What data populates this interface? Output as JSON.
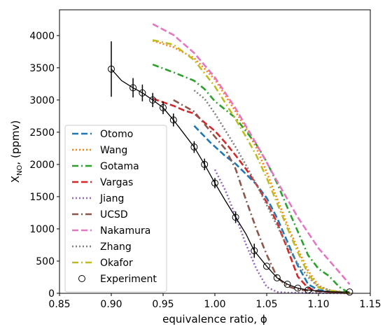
{
  "chart_data": {
    "type": "line",
    "xlabel": "equivalence ratio, ϕ",
    "ylabel_main": "X",
    "ylabel_sub": "NO",
    "ylabel_tail": ", (ppmv)",
    "xlim": [
      0.85,
      1.15
    ],
    "ylim": [
      0,
      4400
    ],
    "xticks": [
      "0.85",
      "0.90",
      "0.95",
      "1.00",
      "1.05",
      "1.10",
      "1.15"
    ],
    "yticks": [
      "0",
      "500",
      "1000",
      "1500",
      "2000",
      "2500",
      "3000",
      "3500",
      "4000"
    ],
    "grid": false,
    "legend_position": "lower-left",
    "series": [
      {
        "name": "Otomo",
        "color": "#1f77b4",
        "dash": "dashed",
        "points": [
          [
            0.98,
            2600
          ],
          [
            0.995,
            2350
          ],
          [
            1.01,
            2130
          ],
          [
            1.02,
            2010
          ],
          [
            1.03,
            1850
          ],
          [
            1.04,
            1690
          ],
          [
            1.05,
            1480
          ],
          [
            1.06,
            1170
          ],
          [
            1.07,
            800
          ],
          [
            1.08,
            430
          ],
          [
            1.09,
            140
          ],
          [
            1.1,
            50
          ],
          [
            1.12,
            20
          ],
          [
            1.13,
            0
          ]
        ]
      },
      {
        "name": "Wang",
        "color": "#ff7f0e",
        "dash": "dotted",
        "points": [
          [
            0.94,
            3920
          ],
          [
            0.96,
            3820
          ],
          [
            0.98,
            3650
          ],
          [
            1.0,
            3320
          ],
          [
            1.02,
            2820
          ],
          [
            1.03,
            2560
          ],
          [
            1.04,
            2260
          ],
          [
            1.05,
            1880
          ],
          [
            1.06,
            1470
          ],
          [
            1.07,
            1060
          ],
          [
            1.08,
            690
          ],
          [
            1.09,
            350
          ],
          [
            1.1,
            120
          ],
          [
            1.11,
            50
          ],
          [
            1.12,
            20
          ],
          [
            1.13,
            0
          ]
        ]
      },
      {
        "name": "Gotama",
        "color": "#2ca02c",
        "dash": "dashdot",
        "points": [
          [
            0.94,
            3550
          ],
          [
            0.96,
            3430
          ],
          [
            0.98,
            3300
          ],
          [
            0.99,
            3170
          ],
          [
            1.0,
            2980
          ],
          [
            1.02,
            2720
          ],
          [
            1.04,
            2310
          ],
          [
            1.05,
            2040
          ],
          [
            1.06,
            1710
          ],
          [
            1.07,
            1330
          ],
          [
            1.08,
            960
          ],
          [
            1.09,
            590
          ],
          [
            1.1,
            380
          ],
          [
            1.11,
            270
          ],
          [
            1.12,
            100
          ],
          [
            1.13,
            0
          ]
        ]
      },
      {
        "name": "Vargas",
        "color": "#d62728",
        "dash": "dashed",
        "points": [
          [
            0.94,
            3020
          ],
          [
            0.96,
            2910
          ],
          [
            0.97,
            2840
          ],
          [
            0.98,
            2790
          ],
          [
            0.99,
            2650
          ],
          [
            1.0,
            2520
          ],
          [
            1.01,
            2340
          ],
          [
            1.02,
            2140
          ],
          [
            1.03,
            1930
          ],
          [
            1.04,
            1690
          ],
          [
            1.05,
            1410
          ],
          [
            1.06,
            1100
          ],
          [
            1.07,
            690
          ],
          [
            1.08,
            260
          ],
          [
            1.09,
            80
          ],
          [
            1.1,
            30
          ],
          [
            1.12,
            10
          ],
          [
            1.13,
            0
          ]
        ]
      },
      {
        "name": "Jiang",
        "color": "#9467bd",
        "dash": "dotted",
        "points": [
          [
            1.0,
            1920
          ],
          [
            1.01,
            1600
          ],
          [
            1.02,
            1200
          ],
          [
            1.03,
            760
          ],
          [
            1.04,
            380
          ],
          [
            1.05,
            100
          ],
          [
            1.06,
            20
          ],
          [
            1.07,
            10
          ],
          [
            1.09,
            5
          ],
          [
            1.13,
            0
          ]
        ]
      },
      {
        "name": "UCSD",
        "color": "#8c564b",
        "dash": "dashdot",
        "points": [
          [
            0.96,
            3000
          ],
          [
            0.98,
            2820
          ],
          [
            1.0,
            2430
          ],
          [
            1.01,
            2240
          ],
          [
            1.02,
            1930
          ],
          [
            1.03,
            1450
          ],
          [
            1.04,
            1000
          ],
          [
            1.05,
            600
          ],
          [
            1.06,
            250
          ],
          [
            1.07,
            110
          ],
          [
            1.08,
            60
          ],
          [
            1.09,
            40
          ],
          [
            1.1,
            30
          ],
          [
            1.12,
            10
          ],
          [
            1.13,
            0
          ]
        ]
      },
      {
        "name": "Nakamura",
        "color": "#e377c2",
        "dash": "dashed",
        "points": [
          [
            0.94,
            4180
          ],
          [
            0.96,
            4010
          ],
          [
            0.98,
            3730
          ],
          [
            1.0,
            3350
          ],
          [
            1.02,
            2870
          ],
          [
            1.04,
            2320
          ],
          [
            1.06,
            1740
          ],
          [
            1.08,
            1180
          ],
          [
            1.1,
            700
          ],
          [
            1.12,
            330
          ],
          [
            1.13,
            140
          ]
        ]
      },
      {
        "name": "Zhang",
        "color": "#7f7f7f",
        "dash": "dotted",
        "points": [
          [
            0.98,
            3150
          ],
          [
            0.99,
            3020
          ],
          [
            1.0,
            2790
          ],
          [
            1.01,
            2530
          ],
          [
            1.02,
            2270
          ],
          [
            1.03,
            1990
          ],
          [
            1.04,
            1690
          ],
          [
            1.05,
            1370
          ],
          [
            1.06,
            1050
          ],
          [
            1.07,
            730
          ],
          [
            1.08,
            460
          ],
          [
            1.09,
            250
          ],
          [
            1.1,
            100
          ],
          [
            1.11,
            50
          ],
          [
            1.12,
            20
          ],
          [
            1.13,
            0
          ]
        ]
      },
      {
        "name": "Okafor",
        "color": "#bcbd22",
        "dash": "dashdot",
        "points": [
          [
            0.94,
            3930
          ],
          [
            0.96,
            3860
          ],
          [
            0.98,
            3620
          ],
          [
            1.0,
            3210
          ],
          [
            1.02,
            2700
          ],
          [
            1.03,
            2430
          ],
          [
            1.04,
            2140
          ],
          [
            1.05,
            1790
          ],
          [
            1.06,
            1400
          ],
          [
            1.07,
            1010
          ],
          [
            1.08,
            640
          ],
          [
            1.09,
            300
          ],
          [
            1.1,
            90
          ],
          [
            1.11,
            40
          ],
          [
            1.12,
            30
          ],
          [
            1.13,
            0
          ]
        ]
      }
    ],
    "experiment": {
      "name": "Experiment",
      "points": [
        {
          "x": 0.9,
          "y": 3480,
          "err": 430
        },
        {
          "x": 0.921,
          "y": 3190,
          "err": 150
        },
        {
          "x": 0.93,
          "y": 3110,
          "err": 130
        },
        {
          "x": 0.94,
          "y": 3000,
          "err": 110
        },
        {
          "x": 0.95,
          "y": 2880,
          "err": 100
        },
        {
          "x": 0.96,
          "y": 2690,
          "err": 100
        },
        {
          "x": 0.98,
          "y": 2270,
          "err": 90
        },
        {
          "x": 0.99,
          "y": 2000,
          "err": 90
        },
        {
          "x": 1.0,
          "y": 1710,
          "err": 80
        },
        {
          "x": 1.02,
          "y": 1180,
          "err": 90
        },
        {
          "x": 1.038,
          "y": 660,
          "err": 110
        },
        {
          "x": 1.05,
          "y": 420,
          "err": 0
        },
        {
          "x": 1.06,
          "y": 240,
          "err": 0
        },
        {
          "x": 1.07,
          "y": 140,
          "err": 0
        },
        {
          "x": 1.08,
          "y": 80,
          "err": 0
        },
        {
          "x": 1.09,
          "y": 50,
          "err": 0
        },
        {
          "x": 1.13,
          "y": 20,
          "err": 0
        }
      ],
      "fit": [
        [
          0.9,
          3480
        ],
        [
          0.91,
          3300
        ],
        [
          0.921,
          3190
        ],
        [
          0.93,
          3110
        ],
        [
          0.94,
          3000
        ],
        [
          0.95,
          2880
        ],
        [
          0.96,
          2690
        ],
        [
          0.97,
          2480
        ],
        [
          0.98,
          2270
        ],
        [
          0.99,
          2000
        ],
        [
          1.0,
          1710
        ],
        [
          1.01,
          1440
        ],
        [
          1.02,
          1180
        ],
        [
          1.03,
          920
        ],
        [
          1.038,
          660
        ],
        [
          1.05,
          420
        ],
        [
          1.06,
          240
        ],
        [
          1.07,
          140
        ],
        [
          1.08,
          80
        ],
        [
          1.09,
          50
        ],
        [
          1.1,
          35
        ],
        [
          1.11,
          25
        ],
        [
          1.12,
          20
        ],
        [
          1.13,
          20
        ]
      ]
    }
  }
}
